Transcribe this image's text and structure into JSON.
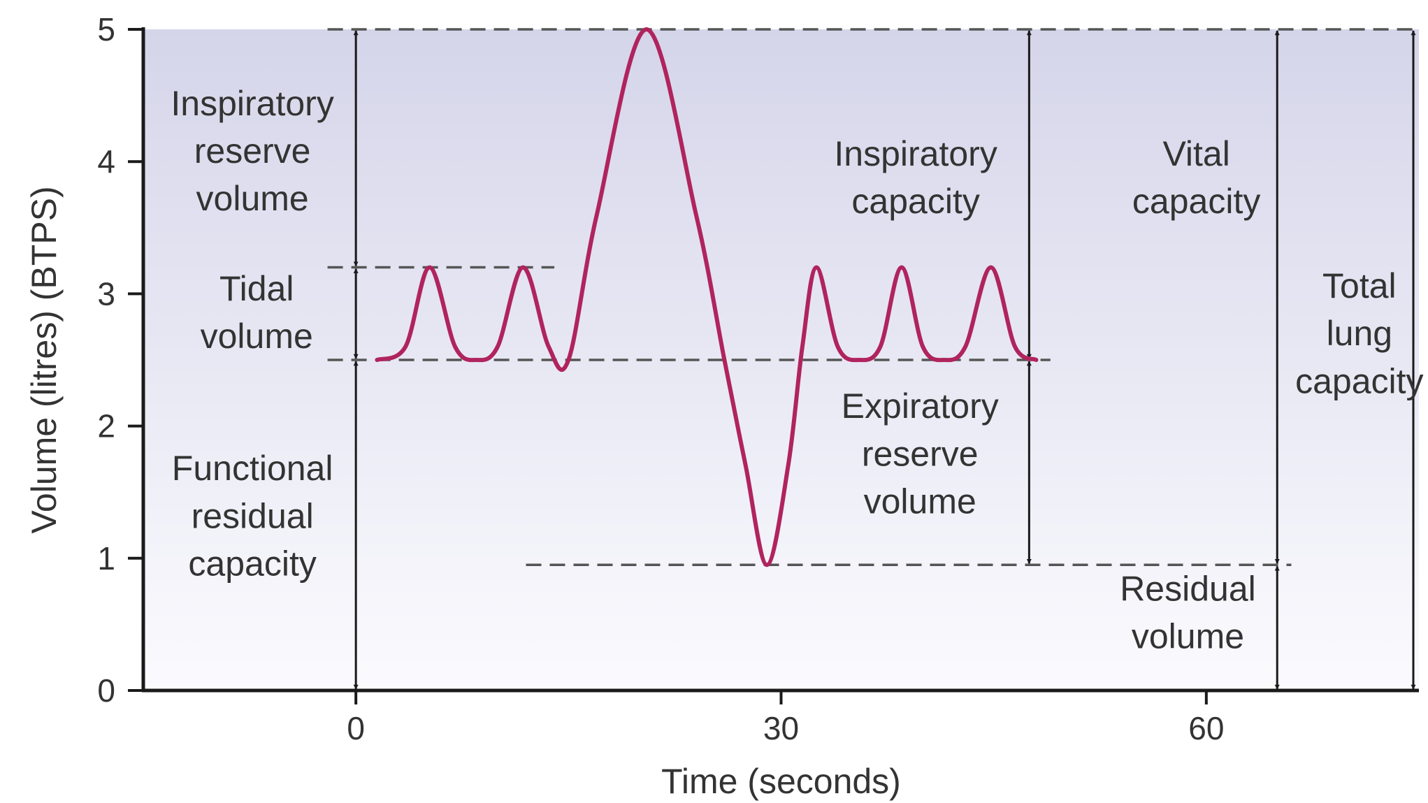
{
  "chart_data": {
    "type": "line",
    "xlabel": "Time (seconds)",
    "ylabel": "Volume (litres) (BTPS)",
    "xlim": [
      -15,
      75
    ],
    "ylim": [
      0,
      5
    ],
    "x_ticks": [
      0,
      30,
      60
    ],
    "y_ticks": [
      0,
      1,
      2,
      3,
      4,
      5
    ],
    "grid": false,
    "series": [
      {
        "color": "#b0245e",
        "points": [
          [
            1.5,
            2.5
          ],
          [
            3.5,
            2.6
          ],
          [
            5.2,
            3.2
          ],
          [
            7.0,
            2.6
          ],
          [
            8.5,
            2.5
          ],
          [
            10.0,
            2.6
          ],
          [
            11.8,
            3.2
          ],
          [
            13.6,
            2.6
          ],
          [
            15.0,
            2.5
          ],
          [
            17.0,
            3.6
          ],
          [
            20.5,
            5.0
          ],
          [
            24.0,
            3.6
          ],
          [
            26.0,
            2.5
          ],
          [
            27.5,
            1.7
          ],
          [
            29.0,
            0.95
          ],
          [
            30.5,
            1.7
          ],
          [
            31.5,
            2.6
          ],
          [
            32.5,
            3.2
          ],
          [
            34.0,
            2.6
          ],
          [
            35.5,
            2.5
          ],
          [
            37.0,
            2.6
          ],
          [
            38.5,
            3.2
          ],
          [
            40.0,
            2.6
          ],
          [
            41.5,
            2.5
          ],
          [
            43.0,
            2.6
          ],
          [
            44.8,
            3.2
          ],
          [
            46.5,
            2.6
          ],
          [
            48.0,
            2.5
          ]
        ]
      }
    ],
    "reference_lines": [
      {
        "y": 5.0,
        "x_from": -2,
        "x_to": 75
      },
      {
        "y": 3.2,
        "x_from": -2,
        "x_to": 14
      },
      {
        "y": 2.5,
        "x_from": -2,
        "x_to": 49
      },
      {
        "y": 0.95,
        "x_from": 12,
        "x_to": 66
      },
      {
        "y": 0.0,
        "x_from": 60.5,
        "x_to": 75
      }
    ],
    "spans": [
      {
        "x": 0,
        "from": 3.2,
        "to": 5.0,
        "label": [
          "Inspiratory",
          "reserve",
          "volume"
        ],
        "label_x": -7.3
      },
      {
        "x": 0,
        "from": 2.5,
        "to": 3.2,
        "label": [
          "Tidal",
          "volume"
        ],
        "label_x": -7.0
      },
      {
        "x": 0,
        "from": 0.0,
        "to": 2.5,
        "label": [
          "Functional",
          "residual",
          "capacity"
        ],
        "label_x": -7.3
      },
      {
        "x": 47.5,
        "from": 2.5,
        "to": 5.0,
        "label": [
          "Inspiratory",
          "capacity"
        ],
        "label_x": 39.5
      },
      {
        "x": 47.5,
        "from": 0.95,
        "to": 2.5,
        "label": [
          "Expiratory",
          "reserve",
          "volume"
        ],
        "label_x": 39.8
      },
      {
        "x": 65.0,
        "from": 0.95,
        "to": 5.0,
        "label": [
          "Vital",
          "capacity"
        ],
        "label_x": 59.3
      },
      {
        "x": 65.0,
        "from": 0.0,
        "to": 0.95,
        "label": [
          "Residual",
          "volume"
        ],
        "label_x": 58.7
      },
      {
        "x": 75.0,
        "from": 0.0,
        "to": 5.0,
        "label": [
          "Total",
          "lung",
          "capacity"
        ],
        "label_x": 70.8
      }
    ],
    "label_rows": {
      "Inspiratory reserve volume": [
        4.35,
        3.99,
        3.63
      ],
      "Tidal volume": [
        2.95,
        2.59
      ],
      "Functional residual capacity": [
        1.59,
        1.23,
        0.87
      ],
      "Inspiratory capacity": [
        3.97,
        3.61
      ],
      "Expiratory reserve volume": [
        2.06,
        1.7,
        1.34
      ],
      "Vital capacity": [
        3.97,
        3.61
      ],
      "Residual volume": [
        0.68,
        0.32
      ],
      "Total lung capacity": [
        2.97,
        2.61,
        2.25
      ]
    }
  }
}
